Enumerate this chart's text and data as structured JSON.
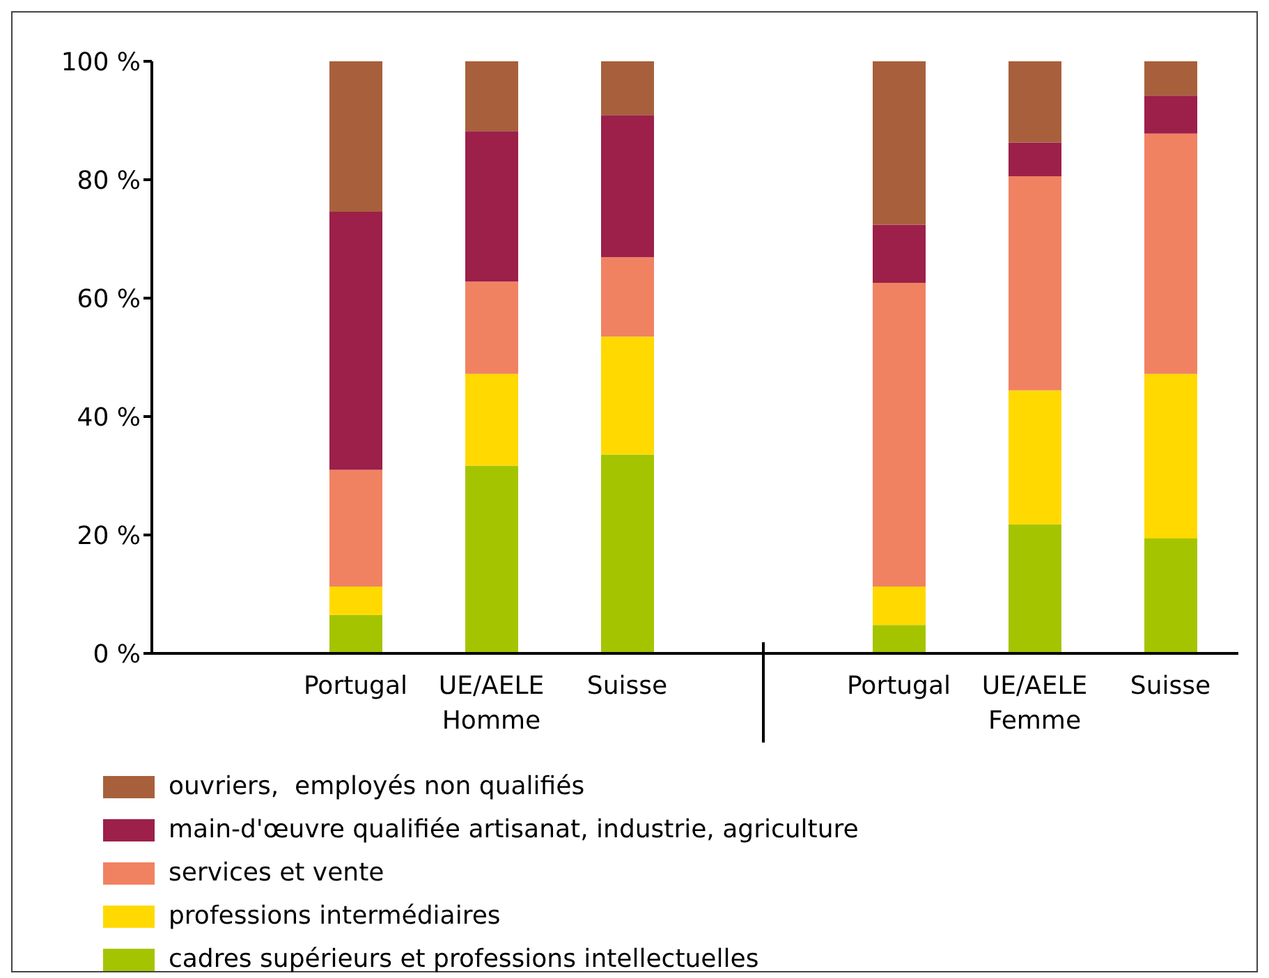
{
  "chart_data": {
    "type": "bar",
    "stacked": true,
    "categories": [
      null,
      "Portugal",
      "UE/AELE",
      "Suisse",
      null,
      "Portugal",
      "UE/AELE",
      "Suisse"
    ],
    "series": [
      {
        "name": "cadres supérieurs et professions intellectuelles",
        "color": "#a5c400",
        "values": [
          null,
          6.5,
          31.7,
          33.6,
          null,
          4.8,
          21.8,
          19.4
        ]
      },
      {
        "name": "professions intermédiaires",
        "color": "#ffd900",
        "values": [
          null,
          4.8,
          15.5,
          19.9,
          null,
          6.5,
          22.6,
          27.8
        ]
      },
      {
        "name": "services et vente",
        "color": "#f08262",
        "values": [
          null,
          19.7,
          15.6,
          13.4,
          null,
          51.3,
          36.2,
          40.6
        ]
      },
      {
        "name": "main-d'œuvre qualifiée artisanat, industrie, agriculture",
        "color": "#9c2049",
        "values": [
          null,
          43.6,
          25.4,
          24.0,
          null,
          9.8,
          5.7,
          6.4
        ]
      },
      {
        "name": "ouvriers,  employés non qualifiés",
        "color": "#a8603c",
        "values": [
          null,
          25.4,
          11.8,
          9.1,
          null,
          27.6,
          13.7,
          5.8
        ]
      }
    ],
    "ylim": [
      0,
      100
    ],
    "yticks": [
      {
        "value": 0,
        "label": "0 %"
      },
      {
        "value": 20,
        "label": "20 %"
      },
      {
        "value": 40,
        "label": "40 %"
      },
      {
        "value": 60,
        "label": "60 %"
      },
      {
        "value": 80,
        "label": "80 %"
      },
      {
        "value": 100,
        "label": "100 %"
      }
    ],
    "annotations": [
      "Homme",
      "Femme"
    ],
    "legend": "bottom",
    "grid": false
  }
}
